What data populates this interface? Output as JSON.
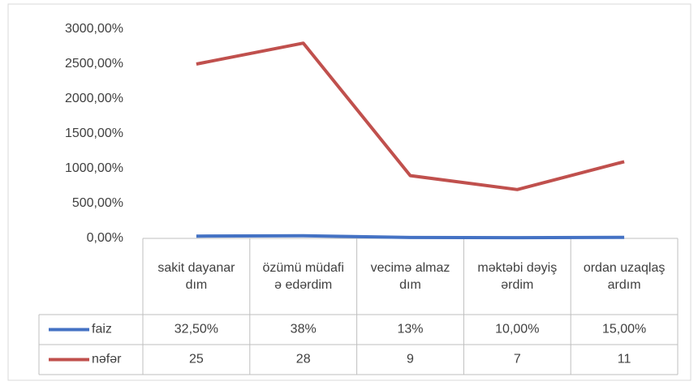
{
  "chart_data": {
    "type": "line",
    "categories": [
      "sakit dayanardım",
      "özümü müdafiə edərdim",
      "vecimə almazdım",
      "məktəbi dəyişərdim",
      "ordan uzaqlaşardım"
    ],
    "series": [
      {
        "name": "faiz",
        "color": "#4472c4",
        "values": [
          32.5,
          38,
          13,
          10,
          15
        ],
        "value_labels": [
          "32,50%",
          "38%",
          "13%",
          "10,00%",
          "15,00%"
        ]
      },
      {
        "name": "nəfər",
        "color": "#c0504d",
        "values": [
          2500,
          2800,
          900,
          700,
          1100
        ],
        "value_labels": [
          "25",
          "28",
          "9",
          "7",
          "11"
        ]
      }
    ],
    "ylim": [
      0,
      3000
    ],
    "yticks": [
      {
        "value": 0,
        "label": "0,00%"
      },
      {
        "value": 500,
        "label": "500,00%"
      },
      {
        "value": 1000,
        "label": "1000,00%"
      },
      {
        "value": 1500,
        "label": "1500,00%"
      },
      {
        "value": 2000,
        "label": "2000,00%"
      },
      {
        "value": 2500,
        "label": "2500,00%"
      },
      {
        "value": 3000,
        "label": "3000,00%"
      }
    ],
    "grid": false
  }
}
